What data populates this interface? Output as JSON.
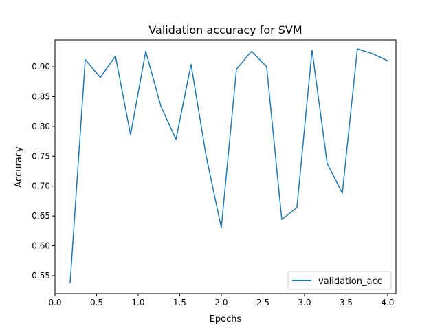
{
  "chart_data": {
    "type": "line",
    "title": "Validation accuracy for SVM",
    "xlabel": "Epochs",
    "ylabel": "Accuracy",
    "xlim": [
      0.0,
      4.1
    ],
    "ylim": [
      0.52,
      0.945
    ],
    "grid": false,
    "legend_position": "lower right",
    "x_ticks": [
      0.0,
      0.5,
      1.0,
      1.5,
      2.0,
      2.5,
      3.0,
      3.5,
      4.0
    ],
    "x_tick_labels": [
      "0.0",
      "0.5",
      "1.0",
      "1.5",
      "2.0",
      "2.5",
      "3.0",
      "3.5",
      "4.0"
    ],
    "y_ticks": [
      0.55,
      0.6,
      0.65,
      0.7,
      0.75,
      0.8,
      0.85,
      0.9
    ],
    "y_tick_labels": [
      "0.55",
      "0.60",
      "0.65",
      "0.70",
      "0.75",
      "0.80",
      "0.85",
      "0.90"
    ],
    "series": [
      {
        "name": "validation_acc",
        "color": "#1f77b4",
        "x": [
          0.182,
          0.364,
          0.545,
          0.727,
          0.909,
          1.091,
          1.273,
          1.455,
          1.636,
          1.818,
          2.0,
          2.182,
          2.364,
          2.545,
          2.727,
          2.909,
          3.091,
          3.273,
          3.455,
          3.636,
          3.818,
          4.0
        ],
        "y": [
          0.538,
          0.912,
          0.882,
          0.918,
          0.786,
          0.926,
          0.834,
          0.778,
          0.904,
          0.75,
          0.63,
          0.896,
          0.926,
          0.9,
          0.644,
          0.664,
          0.928,
          0.738,
          0.688,
          0.93,
          0.922,
          0.91
        ]
      }
    ]
  }
}
